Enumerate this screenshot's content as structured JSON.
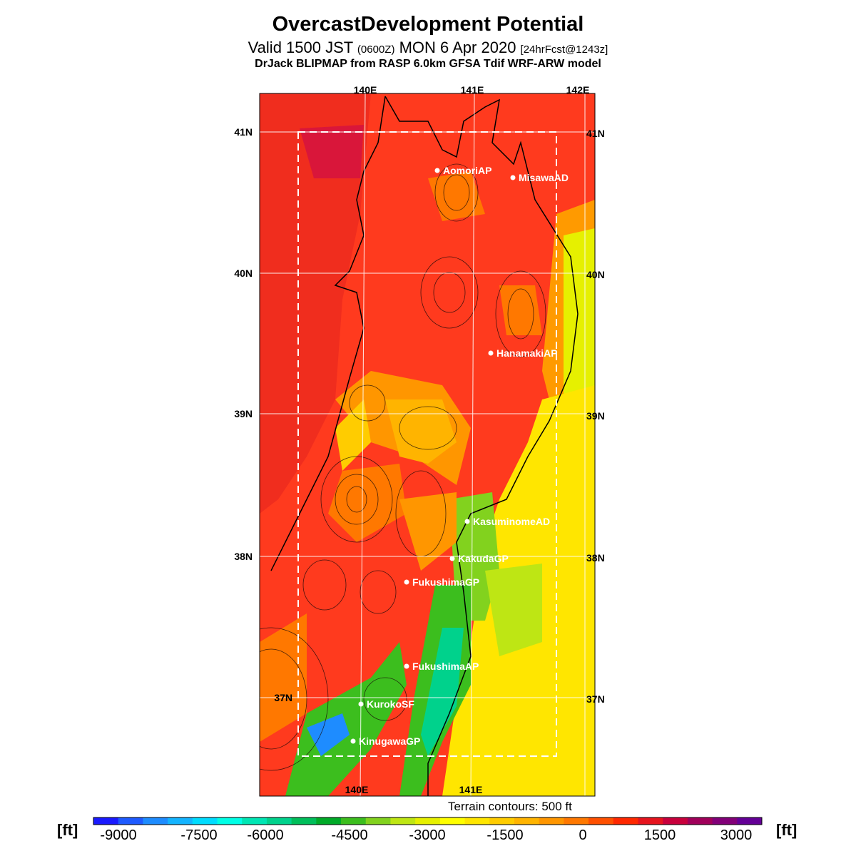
{
  "header": {
    "title": "OvercastDevelopment Potential",
    "valid_prefix": "Valid 1500 JST ",
    "valid_utc": "(0600Z)",
    "valid_date": " MON 6 Apr 2020 ",
    "forecast": "[24hrFcst@1243z]",
    "model_line": "DrJack BLIPMAP from RASP 6.0km GFSA Tdif WRF-ARW model"
  },
  "map": {
    "lon_labels_top": [
      "140E",
      "141E",
      "142E"
    ],
    "lon_labels_bottom": [
      "140E",
      "141E"
    ],
    "lat_labels_left": [
      "41N",
      "40N",
      "39N",
      "38N",
      "37N"
    ],
    "lat_labels_right": [
      "41N",
      "40N",
      "39N",
      "38N",
      "37N"
    ],
    "stations": [
      {
        "name": "AomoriAP"
      },
      {
        "name": "MisawaAD"
      },
      {
        "name": "HanamakiAP"
      },
      {
        "name": "KasuminomeAD"
      },
      {
        "name": "KakudaGP"
      },
      {
        "name": "FukushimaGP"
      },
      {
        "name": "FukushimaAP"
      },
      {
        "name": "KurokoSF"
      },
      {
        "name": "KinugawaGP"
      }
    ],
    "terrain_note": "Terrain contours: 500 ft"
  },
  "colorbar": {
    "unit": "[ft]",
    "tick_labels": [
      "-9000",
      "-7500",
      "-6000",
      "-4500",
      "-3000",
      "-1500",
      "0",
      "1500",
      "3000"
    ],
    "colors": [
      "#1a1aff",
      "#1e5aff",
      "#1e8cff",
      "#14b4ff",
      "#00dcff",
      "#00ffe6",
      "#00e6b4",
      "#00d28c",
      "#00be5a",
      "#00aa28",
      "#3cbe1e",
      "#82d21e",
      "#bee614",
      "#e6f000",
      "#ffff00",
      "#ffe600",
      "#ffcc00",
      "#ffb400",
      "#ff9600",
      "#ff7800",
      "#ff5000",
      "#ff2800",
      "#e6141e",
      "#c8003c",
      "#a0005a",
      "#820078",
      "#640096"
    ]
  }
}
